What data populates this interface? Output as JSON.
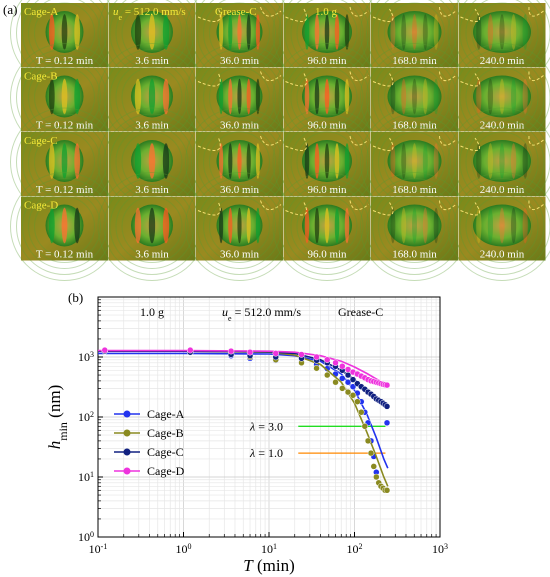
{
  "panel_a": {
    "letter": "(a)",
    "rows": [
      "Cage-A",
      "Cage-B",
      "Cage-C",
      "Cage-D"
    ],
    "times": [
      "T = 0.12 min",
      "3.6 min",
      "36.0 min",
      "96.0 min",
      "168.0 min",
      "240.0 min"
    ],
    "top_labels": [
      "u",
      "e",
      " = 512.0 mm/s",
      "Grease-C",
      "1.0 g"
    ]
  },
  "panel_b": {
    "letter": "(b)"
  },
  "chart_data": {
    "type": "scatter",
    "xlabel_main": "T",
    "xlabel_unit": " (min)",
    "ylabel_main": "h",
    "ylabel_sub": "min",
    "ylabel_unit": " (nm)",
    "xscale": "log",
    "yscale": "log",
    "xlim": [
      0.1,
      1000
    ],
    "ylim": [
      1,
      10000
    ],
    "x_ticks": [
      {
        "v": 0.1,
        "b": "10",
        "e": "-1"
      },
      {
        "v": 1,
        "b": "10",
        "e": "0"
      },
      {
        "v": 10,
        "b": "10",
        "e": "1"
      },
      {
        "v": 100,
        "b": "10",
        "e": "2"
      },
      {
        "v": 1000,
        "b": "10",
        "e": "3"
      }
    ],
    "y_ticks": [
      {
        "v": 1,
        "b": "10",
        "e": "0"
      },
      {
        "v": 10,
        "b": "10",
        "e": "1"
      },
      {
        "v": 100,
        "b": "10",
        "e": "2"
      },
      {
        "v": 1000,
        "b": "10",
        "e": "3"
      }
    ],
    "grid": true,
    "legend_position": "middle-left",
    "header": {
      "load": "1.0 g",
      "speed_u": "u",
      "speed_sub": "e",
      "speed_val": " = 512.0 mm/s",
      "grease": "Grease-C"
    },
    "annotations": [
      {
        "lambda": "λ",
        "value": " = 3.0",
        "y": 70,
        "x_start": 3,
        "x_end": 230,
        "color": "#22dd22"
      },
      {
        "lambda": "λ",
        "value": " = 1.0",
        "y": 25,
        "x_start": 3,
        "x_end": 230,
        "color": "#ff8800"
      }
    ],
    "series": [
      {
        "name": "Cage-A",
        "color": "#2233ee",
        "x": [
          0.12,
          1.2,
          3.6,
          6,
          12,
          24,
          36,
          48,
          60,
          72,
          84,
          96,
          108,
          120,
          132,
          144,
          156,
          168,
          180,
          192,
          204,
          216,
          228,
          240
        ],
        "y": [
          1250,
          1200,
          1050,
          950,
          880,
          820,
          760,
          640,
          520,
          440,
          380,
          320,
          250,
          180,
          120,
          80,
          40,
          22,
          12,
          8,
          7,
          6.5,
          6,
          80
        ],
        "fit": [
          [
            0.1,
            1150
          ],
          [
            1,
            1150
          ],
          [
            10,
            1120
          ],
          [
            20,
            1050
          ],
          [
            40,
            850
          ],
          [
            70,
            520
          ],
          [
            100,
            280
          ],
          [
            140,
            110
          ],
          [
            180,
            45
          ],
          [
            220,
            20
          ],
          [
            245,
            14
          ]
        ]
      },
      {
        "name": "Cage-B",
        "color": "#8a8a20",
        "x": [
          0.12,
          1.2,
          3.6,
          6,
          12,
          24,
          36,
          48,
          60,
          72,
          84,
          96,
          108,
          120,
          132,
          144,
          156,
          168,
          180,
          192,
          204,
          216,
          228,
          240
        ],
        "y": [
          1280,
          1200,
          1100,
          1000,
          900,
          800,
          650,
          500,
          380,
          300,
          260,
          230,
          180,
          120,
          70,
          40,
          25,
          15,
          10,
          8,
          7,
          6.5,
          6,
          6
        ],
        "fit": [
          [
            0.1,
            1250
          ],
          [
            1,
            1250
          ],
          [
            10,
            1200
          ],
          [
            20,
            1080
          ],
          [
            40,
            750
          ],
          [
            70,
            380
          ],
          [
            100,
            170
          ],
          [
            140,
            55
          ],
          [
            180,
            22
          ],
          [
            220,
            10
          ],
          [
            245,
            7
          ]
        ]
      },
      {
        "name": "Cage-C",
        "color": "#102080",
        "x": [
          0.12,
          1.2,
          3.6,
          6,
          12,
          24,
          36,
          48,
          60,
          72,
          84,
          96,
          108,
          120,
          132,
          144,
          156,
          168,
          180,
          192,
          204,
          216,
          228,
          240
        ],
        "y": [
          1250,
          1200,
          1100,
          1050,
          1000,
          950,
          880,
          800,
          700,
          600,
          500,
          420,
          360,
          320,
          290,
          260,
          240,
          220,
          200,
          190,
          180,
          170,
          160,
          150
        ],
        "fit": [
          [
            0.1,
            1250
          ],
          [
            1,
            1250
          ],
          [
            10,
            1220
          ],
          [
            20,
            1150
          ],
          [
            40,
            900
          ],
          [
            70,
            600
          ],
          [
            100,
            420
          ],
          [
            140,
            290
          ],
          [
            180,
            210
          ],
          [
            220,
            165
          ],
          [
            245,
            145
          ]
        ]
      },
      {
        "name": "Cage-D",
        "color": "#ee33dd",
        "x": [
          0.12,
          1.2,
          3.6,
          6,
          12,
          24,
          36,
          48,
          60,
          72,
          84,
          96,
          108,
          120,
          132,
          144,
          156,
          168,
          180,
          192,
          204,
          216,
          228,
          240
        ],
        "y": [
          1300,
          1300,
          1250,
          1200,
          1150,
          1100,
          1000,
          900,
          800,
          700,
          620,
          560,
          520,
          480,
          450,
          420,
          400,
          390,
          380,
          370,
          360,
          350,
          345,
          340
        ],
        "fit": [
          [
            0.1,
            1280
          ],
          [
            1,
            1280
          ],
          [
            10,
            1250
          ],
          [
            20,
            1200
          ],
          [
            40,
            1050
          ],
          [
            70,
            850
          ],
          [
            100,
            680
          ],
          [
            140,
            530
          ],
          [
            180,
            430
          ],
          [
            220,
            370
          ],
          [
            245,
            340
          ]
        ]
      }
    ]
  }
}
